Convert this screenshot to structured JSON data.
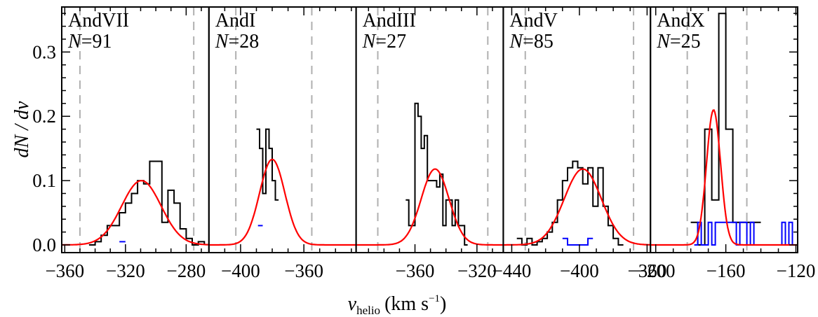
{
  "figure": {
    "ylabel": "dN / dv",
    "xlabel_main": "v",
    "xlabel_sub": "helio",
    "xlabel_unit": "(km s",
    "xlabel_sup": "−1",
    "xlabel_close": ")",
    "y_ticks": [
      "0.0",
      "0.1",
      "0.2",
      "0.3"
    ]
  },
  "colors": {
    "histogram": "#000000",
    "nonmember": "#0000ff",
    "gaussian_fit": "#ff0000",
    "cut_lines": "#b0b0b0"
  },
  "chart_data": [
    {
      "type": "histogram",
      "name": "AndVII",
      "n_label": "N",
      "n_value": "=91",
      "xlim": [
        -362,
        -265
      ],
      "ylim": [
        -0.012,
        0.37
      ],
      "xticks": [
        -360,
        -320,
        -280
      ],
      "xtick_labels": [
        "−360",
        "−320",
        "−280"
      ],
      "cut_lines": [
        -350,
        -275
      ],
      "bins_x": [
        -344,
        -340,
        -336,
        -332,
        -328,
        -324,
        -320,
        -316,
        -312,
        -308,
        -304,
        -300,
        -296,
        -292,
        -288,
        -284,
        -280,
        -276,
        -272,
        -268
      ],
      "hist": [
        0.0,
        0.005,
        0.015,
        0.03,
        0.03,
        0.05,
        0.065,
        0.08,
        0.1,
        0.095,
        0.13,
        0.13,
        0.035,
        0.085,
        0.065,
        0.025,
        0.01,
        0.0,
        0.005,
        0.0
      ],
      "nonmember_bins_x": [
        -324,
        -320
      ],
      "nonmember_hist": [
        0.005
      ],
      "fit": {
        "mu": -309.5,
        "sigma": 13.0,
        "amp": 0.1
      }
    },
    {
      "type": "histogram",
      "name": "AndI",
      "n_label": "N",
      "n_value": "=28",
      "xlim": [
        -420,
        -327
      ],
      "ylim": [
        -0.012,
        0.37
      ],
      "xticks": [
        -400,
        -360
      ],
      "xtick_labels": [
        "−400",
        "−360"
      ],
      "cut_lines": [
        -403,
        -355
      ],
      "bins_x": [
        -390,
        -388,
        -386,
        -384,
        -382,
        -380,
        -378,
        -376
      ],
      "hist": [
        0.18,
        0.15,
        0.08,
        0.18,
        0.15,
        0.1,
        0.07
      ],
      "nonmember_bins_x": [
        -389,
        -386
      ],
      "nonmember_hist": [
        0.03
      ],
      "fit": {
        "mu": -380.0,
        "sigma": 8.0,
        "amp": 0.133
      }
    },
    {
      "type": "histogram",
      "name": "AndIII",
      "n_label": "N",
      "n_value": "=27",
      "xlim": [
        -398,
        -303
      ],
      "ylim": [
        -0.012,
        0.37
      ],
      "xticks": [
        -360,
        -320
      ],
      "xtick_labels": [
        "−360",
        "−320"
      ],
      "cut_lines": [
        -384,
        -313
      ],
      "bins_x": [
        -366,
        -364,
        -362,
        -360,
        -358,
        -356,
        -354,
        -352,
        -350,
        -348,
        -346,
        -344,
        -342,
        -340,
        -338,
        -336,
        -334,
        -332,
        -330,
        -328,
        -326
      ],
      "hist": [
        0.07,
        0.03,
        0.03,
        0.22,
        0.2,
        0.15,
        0.17,
        0.1,
        0.1,
        0.1,
        0.09,
        0.11,
        0.03,
        0.07,
        0.07,
        0.03,
        0.07,
        0.03,
        0.03,
        0.0
      ],
      "nonmember_bins_x": [],
      "nonmember_hist": [],
      "fit": {
        "mu": -347.0,
        "sigma": 9.0,
        "amp": 0.118
      }
    },
    {
      "type": "histogram",
      "name": "AndV",
      "n_label": "N",
      "n_value": "=85",
      "xlim": [
        -445,
        -358
      ],
      "ylim": [
        -0.012,
        0.37
      ],
      "xticks": [
        -440,
        -400,
        -360
      ],
      "xtick_labels": [
        "−440",
        "−400",
        "−360"
      ],
      "cut_lines": [
        -432,
        -368
      ],
      "bins_x": [
        -437,
        -434,
        -431,
        -428,
        -425,
        -422,
        -419,
        -416,
        -413,
        -410,
        -407,
        -404,
        -401,
        -398,
        -395,
        -392,
        -389,
        -386,
        -383,
        -380,
        -377,
        -374
      ],
      "hist": [
        0.01,
        0.0,
        0.01,
        0.0,
        0.005,
        0.01,
        0.02,
        0.035,
        0.07,
        0.1,
        0.12,
        0.13,
        0.12,
        0.095,
        0.12,
        0.06,
        0.12,
        0.06,
        0.03,
        0.01,
        0.0
      ],
      "nonmember_bins_x": [
        -410,
        -407,
        -404,
        -401,
        -398,
        -395,
        -392
      ],
      "nonmember_hist": [
        0.01,
        0.0,
        0.0,
        0.0,
        0.0,
        0.01
      ],
      "fit": {
        "mu": -398.0,
        "sigma": 11.0,
        "amp": 0.118
      }
    },
    {
      "type": "histogram",
      "name": "AndX",
      "n_label": "N",
      "n_value": "=25",
      "xlim": [
        -203,
        -119
      ],
      "ylim": [
        -0.012,
        0.37
      ],
      "xticks": [
        -200,
        -160,
        -120
      ],
      "xtick_labels": [
        "−200",
        "−160",
        "−120"
      ],
      "cut_lines": [
        -182,
        -148
      ],
      "bins_x": [
        -180,
        -176,
        -172,
        -168,
        -164,
        -160,
        -156,
        -152,
        -148,
        -144,
        -140
      ],
      "hist": [
        0.035,
        0.0,
        0.18,
        0.07,
        0.36,
        0.18,
        0.035,
        0.035,
        0.035,
        0.035
      ],
      "nonmember_bins_x": [
        -178,
        -176,
        -174,
        -172,
        -170,
        -168,
        -166,
        -164,
        -162,
        -160,
        -158,
        -156,
        -154,
        -152,
        -150,
        -148,
        -146,
        -144,
        -142,
        -140,
        -138,
        -136,
        -134,
        -132,
        -130,
        -128,
        -126,
        -124,
        -122,
        -120
      ],
      "nonmember_hist": [
        0.0,
        0.035,
        0.0,
        0.0,
        0.035,
        0.0,
        0.035,
        0.035,
        0.035,
        0.035,
        0.035,
        0.035,
        0.0,
        0.035,
        0.035,
        0.0,
        0.035,
        0.0,
        0.0,
        0.0,
        0.0,
        0.0,
        0.0,
        0.0,
        0.0,
        0.035,
        0.0,
        0.035,
        0.0
      ],
      "fit": {
        "mu": -167.0,
        "sigma": 4.0,
        "amp": 0.21
      }
    }
  ]
}
